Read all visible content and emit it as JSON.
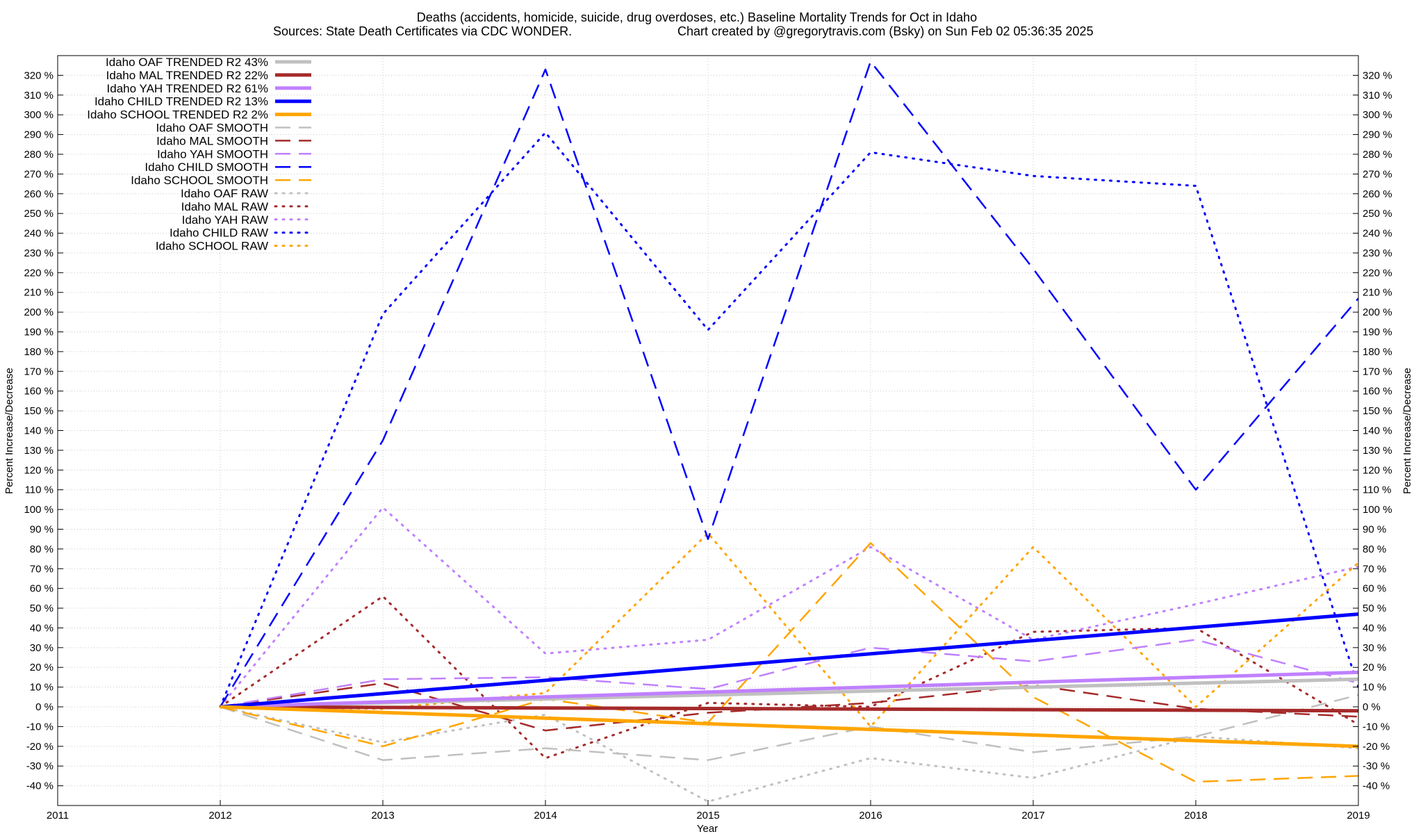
{
  "chart_data": {
    "type": "line",
    "title": "Deaths (accidents, homicide, suicide, drug overdoses, etc.)  Baseline Mortality Trends for Oct in Idaho",
    "subtitle_left": "Sources: State Death Certificates via CDC WONDER.",
    "subtitle_right": "Chart created by @gregorytravis.com (Bsky) on Sun Feb 02 05:36:35 2025",
    "xlabel": "Year",
    "ylabel": "Percent Increase/Decrease",
    "y2label": "Percent Increase/Decrease",
    "xlim": [
      2011,
      2019
    ],
    "ylim": [
      -50,
      330
    ],
    "x_ticks": [
      "2011",
      "2012",
      "2013",
      "2014",
      "2015",
      "2016",
      "2017",
      "2018",
      "2019"
    ],
    "y_ticks": [
      "-40 %",
      "-30 %",
      "-20 %",
      "-10 %",
      "0 %",
      "10 %",
      "20 %",
      "30 %",
      "40 %",
      "50 %",
      "60 %",
      "70 %",
      "80 %",
      "90 %",
      "100 %",
      "110 %",
      "120 %",
      "130 %",
      "140 %",
      "150 %",
      "160 %",
      "170 %",
      "180 %",
      "190 %",
      "200 %",
      "210 %",
      "220 %",
      "230 %",
      "240 %",
      "250 %",
      "260 %",
      "270 %",
      "280 %",
      "290 %",
      "300 %",
      "310 %",
      "320 %"
    ],
    "grid": true,
    "legend_position": "top-left",
    "series": [
      {
        "name": "Idaho OAF TRENDED R2  43%",
        "color": "#c0c0c0",
        "style": "solid-thick",
        "x": [
          2012,
          2019
        ],
        "values": [
          0,
          14
        ]
      },
      {
        "name": "Idaho MAL TRENDED R2  22%",
        "color": "#a52a2a",
        "style": "solid-thick",
        "x": [
          2012,
          2019
        ],
        "values": [
          0,
          -2
        ]
      },
      {
        "name": "Idaho YAH TRENDED R2  61%",
        "color": "#c080ff",
        "style": "solid-thick",
        "x": [
          2012,
          2019
        ],
        "values": [
          0,
          17.5
        ]
      },
      {
        "name": "Idaho CHILD TRENDED R2  13%",
        "color": "#0000ff",
        "style": "solid-thick",
        "x": [
          2012,
          2019
        ],
        "values": [
          0,
          47
        ]
      },
      {
        "name": "Idaho SCHOOL TRENDED R2  2%",
        "color": "#ffa500",
        "style": "solid-thick",
        "x": [
          2012,
          2019
        ],
        "values": [
          0,
          -20
        ]
      },
      {
        "name": "Idaho OAF SMOOTH",
        "color": "#c0c0c0",
        "style": "dashed",
        "x": [
          2012,
          2013,
          2014,
          2015,
          2016,
          2017,
          2018,
          2019
        ],
        "values": [
          0,
          -27,
          -21,
          -27,
          -10,
          -23,
          -15,
          6
        ]
      },
      {
        "name": "Idaho MAL SMOOTH",
        "color": "#a52a2a",
        "style": "dashed",
        "x": [
          2012,
          2013,
          2014,
          2015,
          2016,
          2017,
          2018,
          2019
        ],
        "values": [
          0,
          12,
          -12,
          -3,
          2,
          11,
          -1,
          -5
        ]
      },
      {
        "name": "Idaho YAH SMOOTH",
        "color": "#c080ff",
        "style": "dashed",
        "x": [
          2012,
          2013,
          2014,
          2015,
          2016,
          2017,
          2018,
          2019
        ],
        "values": [
          0,
          14,
          15,
          9,
          30,
          23,
          34,
          12
        ]
      },
      {
        "name": "Idaho CHILD SMOOTH",
        "color": "#0000ff",
        "style": "dashed",
        "x": [
          2012,
          2013,
          2014,
          2015,
          2016,
          2017,
          2018,
          2019
        ],
        "values": [
          0,
          135,
          323,
          85,
          327,
          222,
          110,
          207
        ]
      },
      {
        "name": "Idaho SCHOOL SMOOTH",
        "color": "#ffa500",
        "style": "dashed",
        "x": [
          2012,
          2013,
          2014,
          2015,
          2016,
          2017,
          2018,
          2019
        ],
        "values": [
          0,
          -20,
          4,
          -8,
          83,
          5,
          -38,
          -35
        ]
      },
      {
        "name": "Idaho OAF RAW",
        "color": "#c0c0c0",
        "style": "dotted",
        "x": [
          2012,
          2013,
          2014,
          2015,
          2016,
          2017,
          2018,
          2019
        ],
        "values": [
          0,
          -18,
          -4,
          -48,
          -26,
          -36,
          -15,
          -21
        ]
      },
      {
        "name": "Idaho MAL RAW",
        "color": "#a52a2a",
        "style": "dotted",
        "x": [
          2012,
          2013,
          2014,
          2015,
          2016,
          2017,
          2018,
          2019
        ],
        "values": [
          0,
          56,
          -26,
          2,
          0,
          38,
          40,
          -9
        ]
      },
      {
        "name": "Idaho YAH RAW",
        "color": "#c080ff",
        "style": "dotted",
        "x": [
          2012,
          2013,
          2014,
          2015,
          2016,
          2017,
          2018,
          2019
        ],
        "values": [
          0,
          101,
          27,
          34,
          81,
          34,
          52,
          71
        ]
      },
      {
        "name": "Idaho CHILD RAW",
        "color": "#0000ff",
        "style": "dotted",
        "x": [
          2012,
          2013,
          2014,
          2015,
          2016,
          2017,
          2018,
          2019
        ],
        "values": [
          0,
          199,
          291,
          191,
          281,
          269,
          264,
          10
        ]
      },
      {
        "name": "Idaho SCHOOL RAW",
        "color": "#ffa500",
        "style": "dotted",
        "x": [
          2012,
          2013,
          2014,
          2015,
          2016,
          2017,
          2018,
          2019
        ],
        "values": [
          0,
          -1,
          7,
          88,
          -10,
          81,
          0,
          73
        ]
      }
    ]
  }
}
